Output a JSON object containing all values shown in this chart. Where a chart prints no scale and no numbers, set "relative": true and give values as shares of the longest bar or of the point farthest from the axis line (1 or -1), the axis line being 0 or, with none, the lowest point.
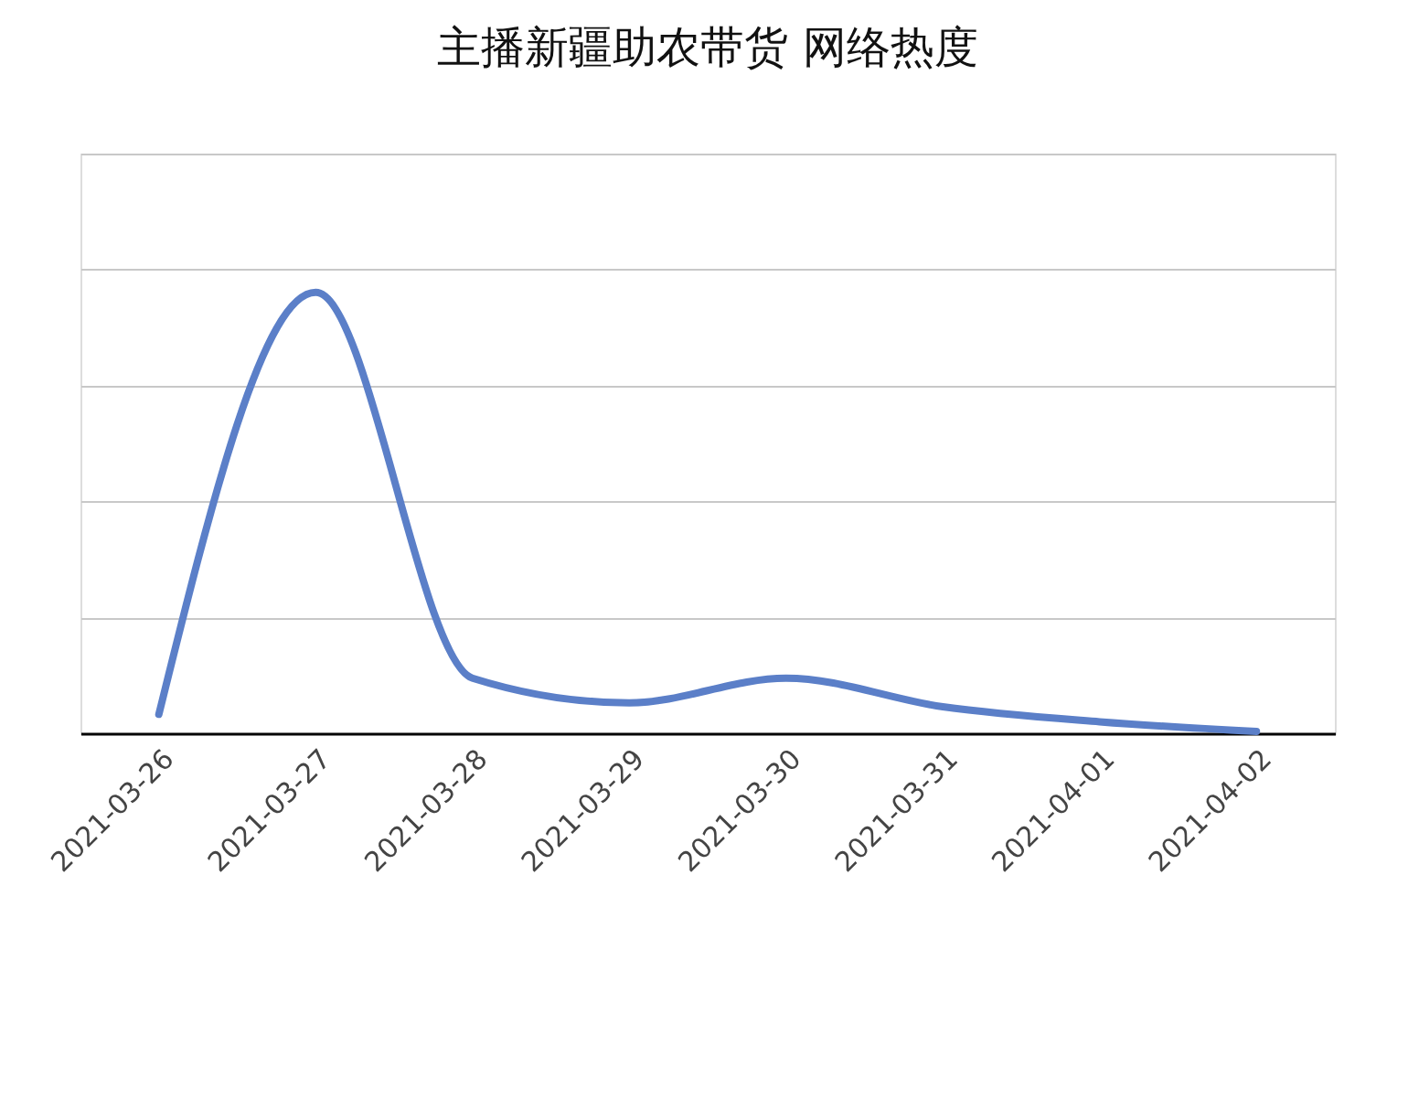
{
  "chart_data": {
    "type": "line",
    "title": "主播新疆助农带货 网络热度",
    "relative": true,
    "grid": "y",
    "marker": "none",
    "line_style": "solid",
    "categories": [
      "2021-03-26",
      "2021-03-27",
      "2021-03-28",
      "2021-03-29",
      "2021-03-30",
      "2021-03-31",
      "2021-04-01",
      "2021-04-02"
    ],
    "series": [
      {
        "color": "#5b7fc8",
        "values": [
          0.043,
          1,
          0.125,
          0.069,
          0.125,
          0.06,
          0.026,
          0.004
        ]
      }
    ]
  }
}
